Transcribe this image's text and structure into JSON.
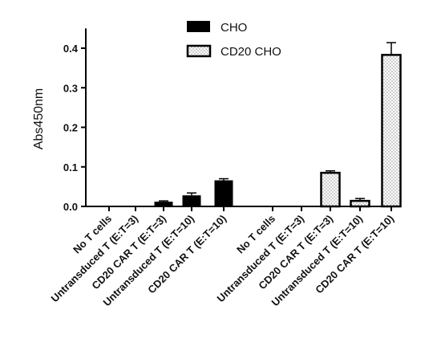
{
  "chart_data": {
    "type": "bar",
    "ylabel": "Abs450nm",
    "xlabel": "",
    "ylim": [
      0,
      0.45
    ],
    "yticks": [
      0.0,
      0.1,
      0.2,
      0.3,
      0.4
    ],
    "ytick_labels": [
      "0.0",
      "0.1",
      "0.2",
      "0.3",
      "0.4"
    ],
    "legend_position": "top-center",
    "colors": {
      "CHO": "#000000",
      "CD20 CHO": "#ffffff",
      "axis": "#000000"
    },
    "series": [
      {
        "name": "CHO",
        "pattern": "solid",
        "categories": [
          "No T cells",
          "Untransduced T (E:T=3)",
          "CD20 CAR T (E:T=3)",
          "Untransduced T (E:T=10)",
          "CD20 CAR T (E:T=10)"
        ],
        "values": [
          0.0,
          0.0,
          0.012,
          0.028,
          0.066
        ],
        "errors": [
          0.0,
          0.0,
          0.002,
          0.006,
          0.004
        ]
      },
      {
        "name": "CD20 CHO",
        "pattern": "dotted",
        "categories": [
          "No T cells",
          "Untransduced T (E:T=3)",
          "CD20 CAR T (E:T=3)",
          "Untransduced T (E:T=10)",
          "CD20 CAR T (E:T=10)"
        ],
        "values": [
          0.0,
          0.0,
          0.085,
          0.014,
          0.383
        ],
        "errors": [
          0.0,
          0.0,
          0.005,
          0.006,
          0.031
        ]
      }
    ]
  }
}
